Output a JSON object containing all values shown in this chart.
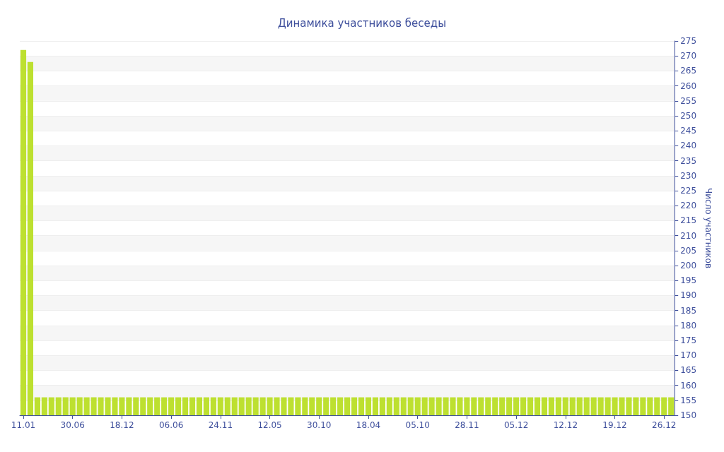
{
  "chart_data": {
    "type": "bar",
    "title": "Динамика участников беседы",
    "ylabel": "Число участников",
    "categories": [
      "11.01",
      null,
      null,
      null,
      null,
      null,
      null,
      "30.06",
      null,
      null,
      null,
      null,
      null,
      null,
      "18.12",
      null,
      null,
      null,
      null,
      null,
      null,
      "06.06",
      null,
      null,
      null,
      null,
      null,
      null,
      "24.11",
      null,
      null,
      null,
      null,
      null,
      null,
      "12.05",
      null,
      null,
      null,
      null,
      null,
      null,
      "30.10",
      null,
      null,
      null,
      null,
      null,
      null,
      "18.04",
      null,
      null,
      null,
      null,
      null,
      null,
      "05.10",
      null,
      null,
      null,
      null,
      null,
      null,
      "28.11",
      null,
      null,
      null,
      null,
      null,
      null,
      "05.12",
      null,
      null,
      null,
      null,
      null,
      null,
      "12.12",
      null,
      null,
      null,
      null,
      null,
      null,
      "19.12",
      null,
      null,
      null,
      null,
      null,
      null,
      "26.12",
      null
    ],
    "values": [
      272,
      268,
      156,
      156,
      156,
      156,
      156,
      156,
      156,
      156,
      156,
      156,
      156,
      156,
      156,
      156,
      156,
      156,
      156,
      156,
      156,
      156,
      156,
      156,
      156,
      156,
      156,
      156,
      156,
      156,
      156,
      156,
      156,
      156,
      156,
      156,
      156,
      156,
      156,
      156,
      156,
      156,
      156,
      156,
      156,
      156,
      156,
      156,
      156,
      156,
      156,
      156,
      156,
      156,
      156,
      156,
      156,
      156,
      156,
      156,
      156,
      156,
      156,
      156,
      156,
      156,
      156,
      156,
      156,
      156,
      156,
      156,
      156,
      156,
      156,
      156,
      156,
      156,
      156,
      156,
      156,
      156,
      156,
      156,
      156,
      156,
      156,
      156,
      156,
      156,
      156,
      156,
      156
    ],
    "color": "#bde030",
    "ylim": [
      150,
      275
    ],
    "yticks": [
      150,
      155,
      160,
      165,
      170,
      175,
      180,
      185,
      190,
      195,
      200,
      205,
      210,
      215,
      220,
      225,
      230,
      235,
      240,
      245,
      250,
      255,
      260,
      265,
      270,
      275
    ],
    "grid": "y"
  }
}
